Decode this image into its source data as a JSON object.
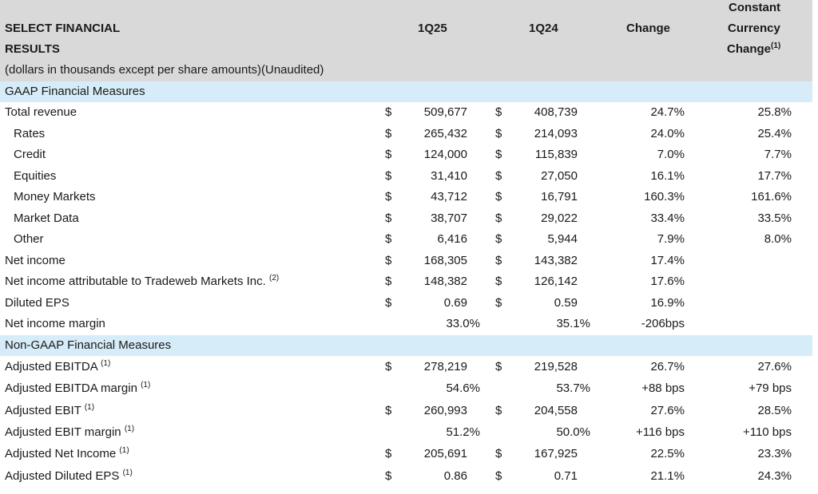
{
  "header": {
    "title_line1": "SELECT FINANCIAL",
    "title_line2": "RESULTS",
    "subtitle": "(dollars in thousands except per share amounts)(Unaudited)",
    "col_1q25": "1Q25",
    "col_1q24": "1Q24",
    "col_change": "Change",
    "col_cc_line1": "Constant",
    "col_cc_line2": "Currency",
    "col_cc_line3": "Change",
    "col_cc_sup": "(1)"
  },
  "sections": {
    "gaap": "GAAP Financial Measures",
    "non_gaap": "Non-GAAP Financial Measures"
  },
  "currency_symbol": "$",
  "gaap_rows": [
    {
      "label": "Total revenue",
      "sup": "",
      "v1": "509,677",
      "v2": "408,739",
      "change": "24.7%",
      "cc": "25.8%"
    },
    {
      "label": "Rates",
      "sup": "",
      "v1": "265,432",
      "v2": "214,093",
      "change": "24.0%",
      "cc": "25.4%"
    },
    {
      "label": "Credit",
      "sup": "",
      "v1": "124,000",
      "v2": "115,839",
      "change": "7.0%",
      "cc": "7.7%"
    },
    {
      "label": "Equities",
      "sup": "",
      "v1": "31,410",
      "v2": "27,050",
      "change": "16.1%",
      "cc": "17.7%"
    },
    {
      "label": "Money Markets",
      "sup": "",
      "v1": "43,712",
      "v2": "16,791",
      "change": "160.3%",
      "cc": "161.6%"
    },
    {
      "label": "Market Data",
      "sup": "",
      "v1": "38,707",
      "v2": "29,022",
      "change": "33.4%",
      "cc": "33.5%"
    },
    {
      "label": "Other",
      "sup": "",
      "v1": "6,416",
      "v2": "5,944",
      "change": "7.9%",
      "cc": "8.0%"
    },
    {
      "label": "Net income",
      "sup": "",
      "v1": "168,305",
      "v2": "143,382",
      "change": "17.4%",
      "cc": ""
    },
    {
      "label": "Net income attributable to Tradeweb Markets Inc.",
      "sup": "(2)",
      "v1": "148,382",
      "v2": "126,142",
      "change": "17.6%",
      "cc": ""
    },
    {
      "label": "Diluted EPS",
      "sup": "",
      "v1": "0.69",
      "v2": "0.59",
      "change": "16.9%",
      "cc": ""
    },
    {
      "label": "Net income margin",
      "sup": "",
      "v1": "33.0%",
      "v2": "35.1%",
      "change": "-206bps",
      "cc": ""
    }
  ],
  "non_gaap_rows": [
    {
      "label": "Adjusted EBITDA",
      "sup": "(1)",
      "v1": "278,219",
      "v2": "219,528",
      "change": "26.7%",
      "cc": "27.6%"
    },
    {
      "label": "Adjusted EBITDA margin",
      "sup": "(1)",
      "v1": "54.6%",
      "v2": "53.7%",
      "change": "+88  bps",
      "cc": "+79  bps"
    },
    {
      "label": "Adjusted EBIT",
      "sup": "(1)",
      "v1": "260,993",
      "v2": "204,558",
      "change": "27.6%",
      "cc": "28.5%"
    },
    {
      "label": "Adjusted EBIT margin",
      "sup": "(1)",
      "v1": "51.2%",
      "v2": "50.0%",
      "change": "+116  bps",
      "cc": "+110  bps"
    },
    {
      "label": "Adjusted Net Income",
      "sup": "(1)",
      "v1": "205,691",
      "v2": "167,925",
      "change": "22.5%",
      "cc": "23.3%"
    },
    {
      "label": "Adjusted Diluted EPS",
      "sup": "(1)",
      "v1": "0.86",
      "v2": "0.71",
      "change": "21.1%",
      "cc": "24.3%"
    }
  ]
}
